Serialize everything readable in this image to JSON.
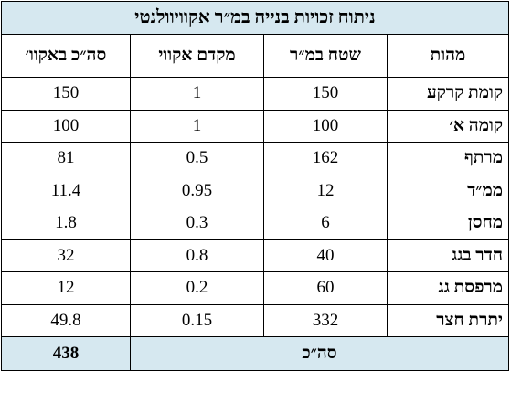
{
  "table": {
    "title": "ניתוח זכויות בנייה במ״ר אקוויוולנטי",
    "headers": [
      "מהות",
      "שטח במ״ר",
      "מקדם אקווי",
      "סה״כ באקוו׳"
    ],
    "rows": [
      [
        "קומת קרקע",
        150,
        1,
        150
      ],
      [
        "קומה א׳",
        100,
        1,
        100
      ],
      [
        "מרתף",
        162,
        0.5,
        81
      ],
      [
        "ממ״ד",
        12,
        0.95,
        11.4
      ],
      [
        "מחסן",
        6,
        0.3,
        1.8
      ],
      [
        "חדר בגג",
        40,
        0.8,
        32
      ],
      [
        "מרפסת גג",
        60,
        0.2,
        12
      ],
      [
        "יתרת חצר",
        332,
        0.15,
        49.8
      ]
    ],
    "total_label": "סה״כ",
    "total_value": 438
  }
}
